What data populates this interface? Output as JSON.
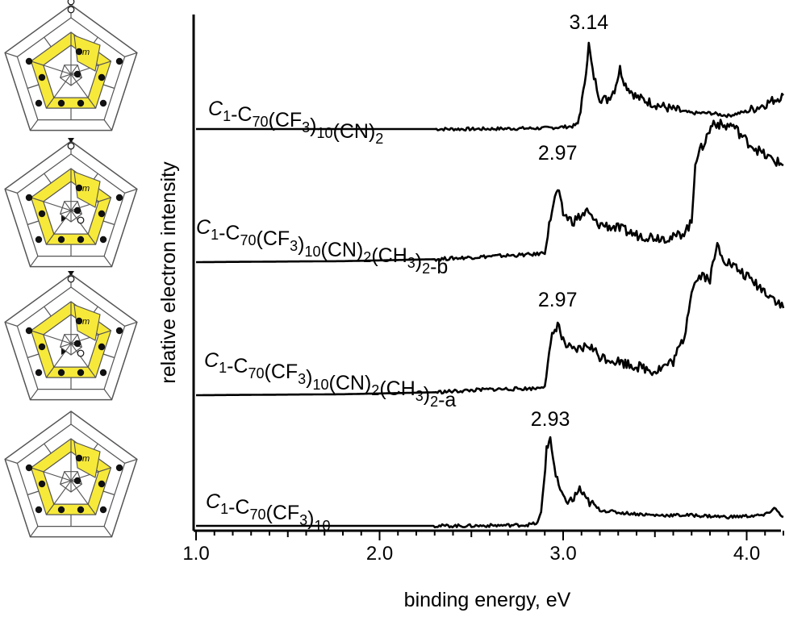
{
  "chart_data": {
    "type": "line",
    "title": "",
    "xlabel": "binding energy, eV",
    "ylabel": "relative electron intensity",
    "xlim": [
      1.0,
      4.2
    ],
    "xticks": [
      "1.0",
      "2.0",
      "3.0",
      "4.0"
    ],
    "grid": false,
    "series": [
      {
        "label": {
          "italic": "C",
          "sub1": "1",
          "rest": "-C",
          "sub2": "70",
          "tail": "(CF",
          "sub3": "3",
          "tail2": ")",
          "sub4": "10",
          "tail3": "(CN)",
          "sub5": "2",
          "tail4": ""
        },
        "peak_label": "3.14",
        "points": [
          [
            1.0,
            0
          ],
          [
            2.0,
            0
          ],
          [
            2.5,
            0
          ],
          [
            2.9,
            0.01
          ],
          [
            3.05,
            0.03
          ],
          [
            3.08,
            0.06
          ],
          [
            3.11,
            0.4
          ],
          [
            3.14,
            0.95
          ],
          [
            3.16,
            0.65
          ],
          [
            3.2,
            0.35
          ],
          [
            3.24,
            0.33
          ],
          [
            3.28,
            0.45
          ],
          [
            3.31,
            0.68
          ],
          [
            3.34,
            0.5
          ],
          [
            3.4,
            0.36
          ],
          [
            3.5,
            0.28
          ],
          [
            3.6,
            0.22
          ],
          [
            3.7,
            0.18
          ],
          [
            3.8,
            0.18
          ],
          [
            3.9,
            0.15
          ],
          [
            4.0,
            0.2
          ],
          [
            4.1,
            0.28
          ],
          [
            4.2,
            0.38
          ]
        ]
      },
      {
        "label": {
          "italic": "C",
          "sub1": "1",
          "rest": "-C",
          "sub2": "70",
          "tail": "(CF",
          "sub3": "3",
          "tail2": ")",
          "sub4": "10",
          "tail3": "(CN)",
          "sub5": "2",
          "tail4": "(CH",
          "sub6": "3",
          "tail5": ")",
          "sub7": "2",
          "tail6": "-b"
        },
        "peak_label": "2.97",
        "points": [
          [
            1.0,
            0
          ],
          [
            1.8,
            0.01
          ],
          [
            2.3,
            0.03
          ],
          [
            2.6,
            0.06
          ],
          [
            2.85,
            0.08
          ],
          [
            2.9,
            0.1
          ],
          [
            2.94,
            0.55
          ],
          [
            2.97,
            0.75
          ],
          [
            3.0,
            0.5
          ],
          [
            3.05,
            0.42
          ],
          [
            3.1,
            0.48
          ],
          [
            3.13,
            0.52
          ],
          [
            3.18,
            0.4
          ],
          [
            3.3,
            0.35
          ],
          [
            3.4,
            0.28
          ],
          [
            3.5,
            0.26
          ],
          [
            3.6,
            0.25
          ],
          [
            3.65,
            0.3
          ],
          [
            3.7,
            0.4
          ],
          [
            3.72,
            1.05
          ],
          [
            3.76,
            1.2
          ],
          [
            3.82,
            1.45
          ],
          [
            3.88,
            1.4
          ],
          [
            3.92,
            1.42
          ],
          [
            4.0,
            1.25
          ],
          [
            4.1,
            1.1
          ],
          [
            4.2,
            1.0
          ]
        ]
      },
      {
        "label": {
          "italic": "C",
          "sub1": "1",
          "rest": "-C",
          "sub2": "70",
          "tail": "(CF",
          "sub3": "3",
          "tail2": ")",
          "sub4": "10",
          "tail3": "(CN)",
          "sub5": "2",
          "tail4": "(CH",
          "sub6": "3",
          "tail5": ")",
          "sub7": "2",
          "tail6": "-a"
        },
        "peak_label": "2.97",
        "points": [
          [
            1.0,
            0
          ],
          [
            1.8,
            0.01
          ],
          [
            2.3,
            0.03
          ],
          [
            2.6,
            0.06
          ],
          [
            2.85,
            0.07
          ],
          [
            2.9,
            0.1
          ],
          [
            2.94,
            0.6
          ],
          [
            2.97,
            0.75
          ],
          [
            3.0,
            0.55
          ],
          [
            3.05,
            0.45
          ],
          [
            3.1,
            0.48
          ],
          [
            3.14,
            0.52
          ],
          [
            3.2,
            0.4
          ],
          [
            3.3,
            0.35
          ],
          [
            3.4,
            0.3
          ],
          [
            3.5,
            0.25
          ],
          [
            3.6,
            0.35
          ],
          [
            3.66,
            0.6
          ],
          [
            3.7,
            1.1
          ],
          [
            3.75,
            1.25
          ],
          [
            3.8,
            1.2
          ],
          [
            3.84,
            1.55
          ],
          [
            3.88,
            1.4
          ],
          [
            3.95,
            1.3
          ],
          [
            4.05,
            1.15
          ],
          [
            4.15,
            1.0
          ],
          [
            4.2,
            0.9
          ]
        ]
      },
      {
        "label": {
          "italic": "C",
          "sub1": "1",
          "rest": "-C",
          "sub2": "70",
          "tail": "(CF",
          "sub3": "3",
          "tail2": ")",
          "sub4": "10",
          "tail3": "",
          "sub5": "",
          "tail4": ""
        },
        "peak_label": "2.93",
        "points": [
          [
            1.0,
            0
          ],
          [
            2.0,
            0
          ],
          [
            2.5,
            0
          ],
          [
            2.8,
            0.01
          ],
          [
            2.86,
            0.03
          ],
          [
            2.88,
            0.15
          ],
          [
            2.91,
            0.85
          ],
          [
            2.93,
            1.0
          ],
          [
            2.96,
            0.55
          ],
          [
            3.0,
            0.3
          ],
          [
            3.05,
            0.28
          ],
          [
            3.09,
            0.42
          ],
          [
            3.12,
            0.3
          ],
          [
            3.2,
            0.18
          ],
          [
            3.3,
            0.15
          ],
          [
            3.5,
            0.12
          ],
          [
            3.7,
            0.12
          ],
          [
            3.9,
            0.1
          ],
          [
            4.1,
            0.12
          ],
          [
            4.15,
            0.2
          ],
          [
            4.2,
            0.1
          ]
        ]
      }
    ]
  },
  "diagrams": [
    {
      "marker": "m"
    },
    {
      "marker": "m"
    },
    {
      "marker": "m"
    },
    {
      "marker": "m"
    }
  ]
}
